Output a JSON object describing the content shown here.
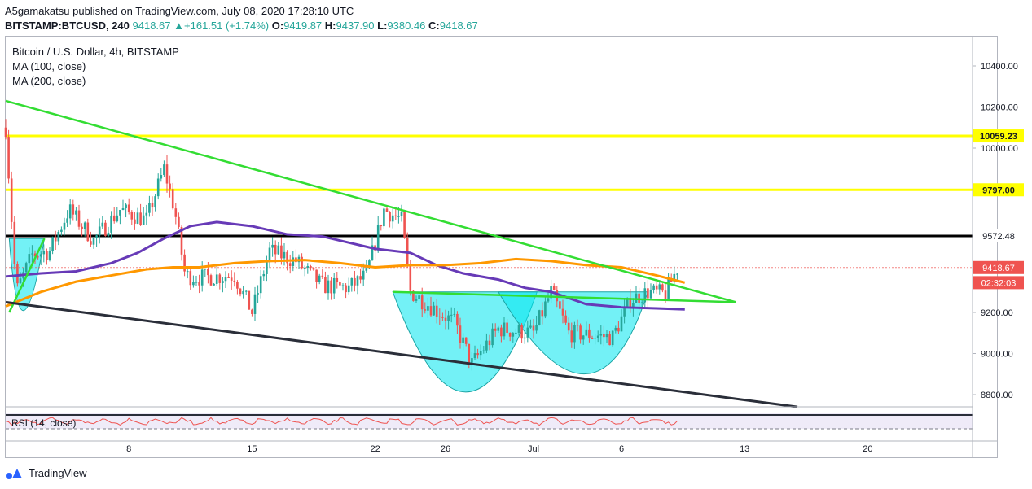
{
  "header": {
    "publisher": "A5gamakatsu published on TradingView.com, July 08, 2020 17:28:10 UTC",
    "symbol": "BITSTAMP:BTCUSD, 240",
    "last": "9418.67",
    "change_arrow": "▲",
    "change": "+161.51 (+1.74%)",
    "o_label": "O:",
    "o": "9419.87",
    "h_label": "H:",
    "h": "9437.90",
    "l_label": "L:",
    "l": "9380.46",
    "c_label": "C:",
    "c": "9418.67"
  },
  "legend": {
    "title": "Bitcoin / U.S. Dollar, 4h, BITSTAMP",
    "ma100": "MA (100, close)",
    "ma200": "MA (200, close)"
  },
  "rsi_label": "RSI (14, close)",
  "brand": "TradingView",
  "colors": {
    "up": "#26a69a",
    "down": "#ef5350",
    "ma100": "#673ab7",
    "ma200": "#ff9800",
    "trend_green": "#33dd33",
    "resistance_yellow": "#ffff00",
    "pattern_cyan": "#00e5ee"
  },
  "chart_data": {
    "type": "candlestick",
    "price_axis": {
      "ticks": [
        "10400.00",
        "10200.00",
        "10000.00",
        "9200.00",
        "9000.00",
        "8800.00"
      ],
      "range": [
        8700,
        10600
      ]
    },
    "time_axis": {
      "ticks": [
        "8",
        "15",
        "22",
        "26",
        "Jul",
        "6",
        "13",
        "20"
      ]
    },
    "price_labels": [
      {
        "text": "10059.23",
        "value": 10059.23,
        "kind": "yellow-line"
      },
      {
        "text": "9797.00",
        "value": 9797.0,
        "kind": "yellow-line"
      },
      {
        "text": "9572.48",
        "value": 9572.48,
        "kind": "black-line"
      },
      {
        "text": "9418.67",
        "value": 9418.67,
        "kind": "last-price"
      },
      {
        "text": "02:32:03",
        "value": 9345,
        "kind": "countdown"
      }
    ],
    "horizontal_levels": [
      10059.23,
      9797.0,
      9572.48
    ],
    "trendlines": [
      {
        "name": "descending resistance",
        "from": [
          "Jun 1",
          10230
        ],
        "to": [
          "Jul 12",
          9250
        ]
      },
      {
        "name": "neckline",
        "from": [
          "Jun 23",
          9300
        ],
        "to": [
          "Jul 12",
          9250
        ]
      },
      {
        "name": "lower channel",
        "from": [
          "Jun 1",
          9250
        ],
        "to": [
          "Jul 15",
          8740
        ]
      }
    ],
    "patterns": [
      "cup",
      "cup",
      "cup"
    ],
    "ohlc_last": {
      "open": 9419.87,
      "high": 9437.9,
      "low": 9380.46,
      "close": 9418.67
    }
  }
}
